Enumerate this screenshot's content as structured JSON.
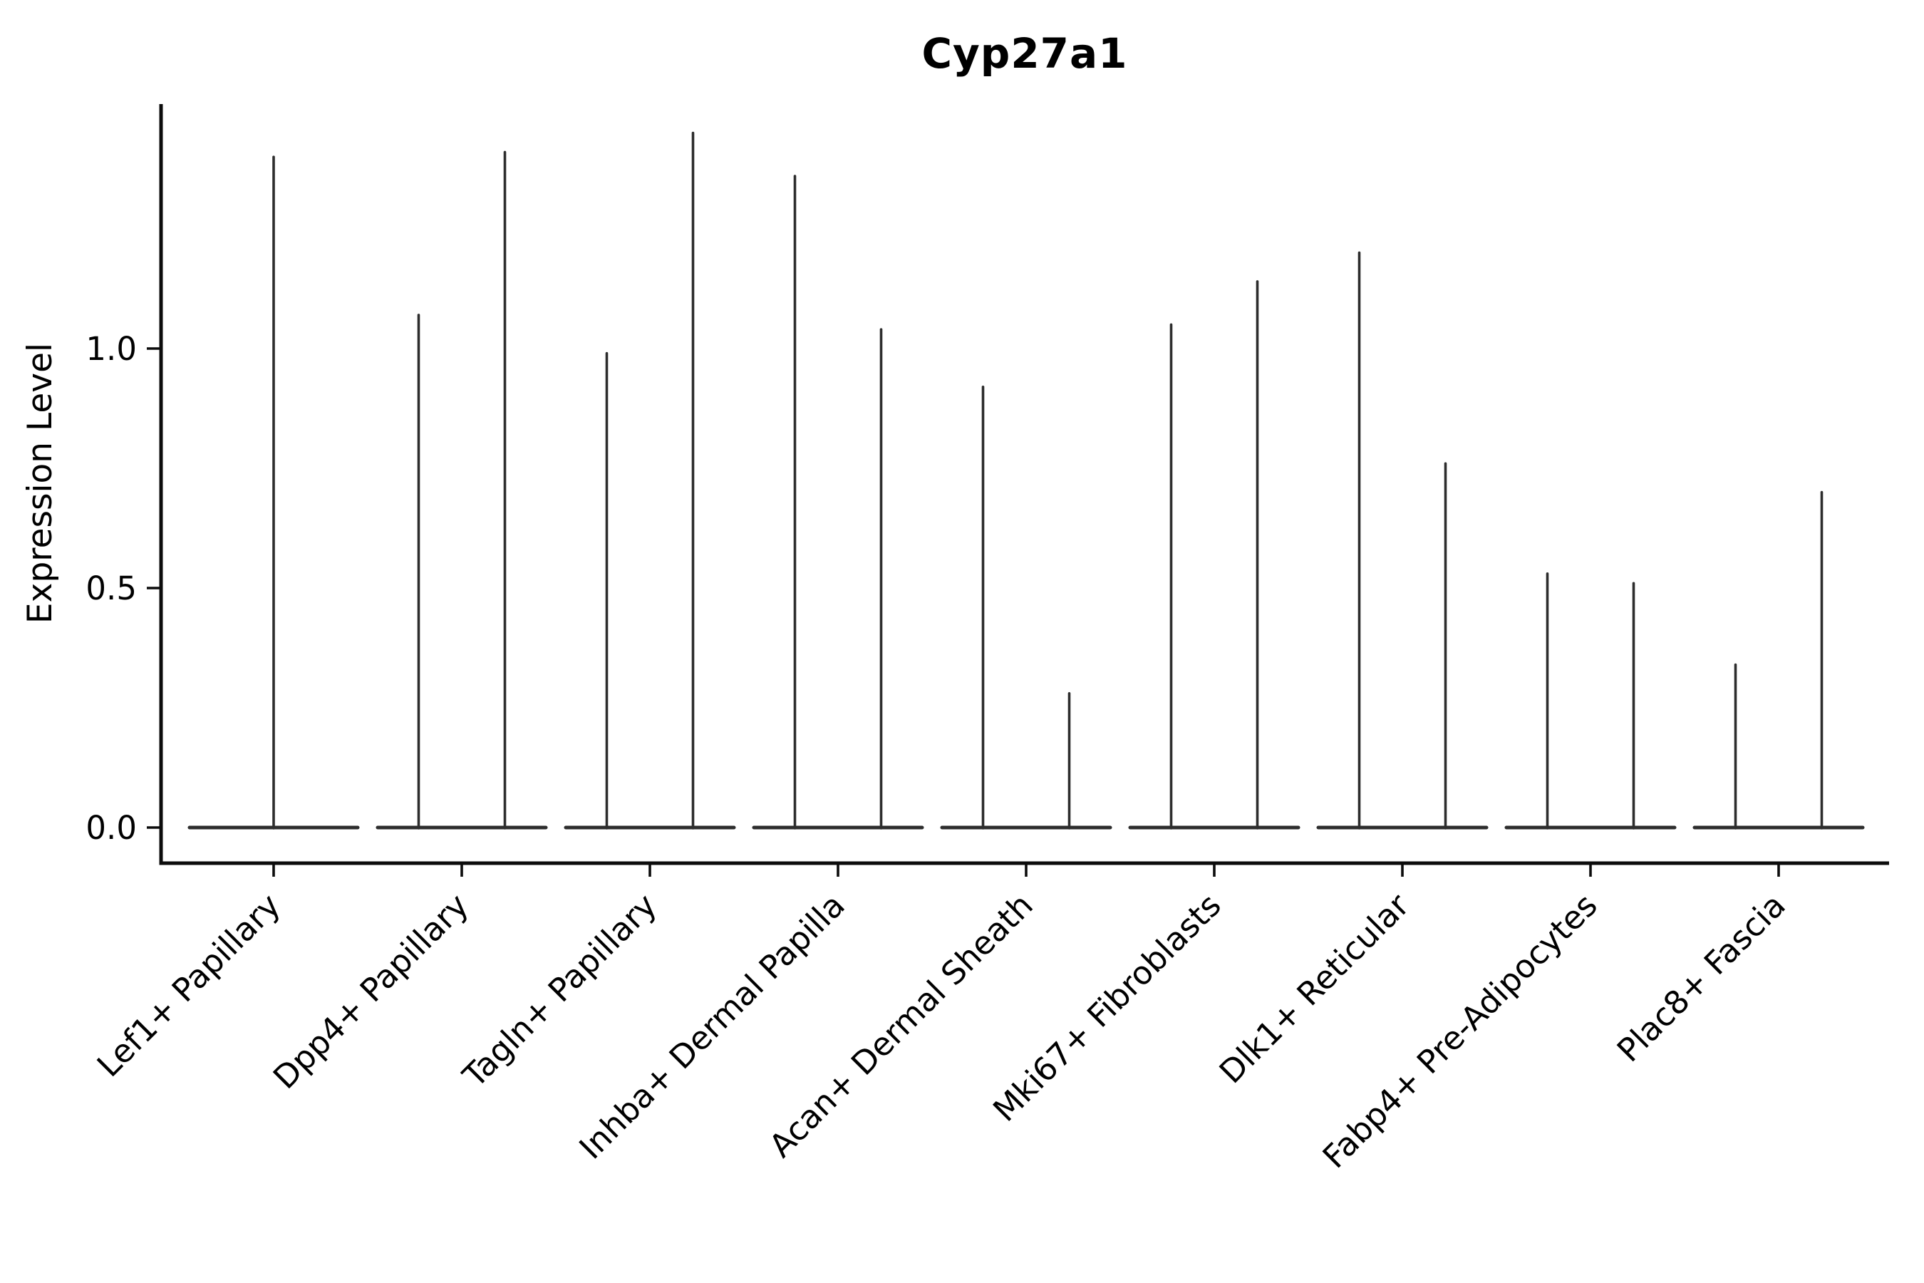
{
  "title": "Cyp27a1",
  "ylabel": "Expression Level",
  "colors": {
    "violin_line": "#2d2d2d",
    "spine": "#0c0c0c",
    "text": "#000000",
    "background": "#ffffff"
  },
  "chart_data": {
    "type": "violin",
    "title": "Cyp27a1",
    "xlabel": "",
    "ylabel": "Expression Level",
    "ylim": [
      -0.075,
      1.51
    ],
    "yticks": [
      0.0,
      0.5,
      1.0
    ],
    "ytick_labels": [
      "0.0",
      "0.5",
      "1.0"
    ],
    "grid": false,
    "legend": "none",
    "categories": [
      "Lef1+ Papillary",
      "Dpp4+ Papillary",
      "Tagln+ Papillary",
      "Inhba+ Dermal Papilla",
      "Acan+ Dermal Sheath",
      "Mki67+ Fibroblasts",
      "Dlk1+ Reticular",
      "Fabp4+ Pre-Adipocytes",
      "Plac8+ Fascia"
    ],
    "description": "Each violin has its mass concentrated at expression 0 (flat horizontal body) with a thin vertical tail rising to the maximum expression value. Categories after the first contain two side-by-side sub-violins.",
    "violin_max_values": [
      [
        1.4
      ],
      [
        1.07,
        1.41
      ],
      [
        0.99,
        1.45
      ],
      [
        1.36,
        1.04
      ],
      [
        0.92,
        0.28
      ],
      [
        1.05,
        1.14
      ],
      [
        1.2,
        0.76
      ],
      [
        0.53,
        0.51
      ],
      [
        0.34,
        0.7
      ]
    ]
  }
}
